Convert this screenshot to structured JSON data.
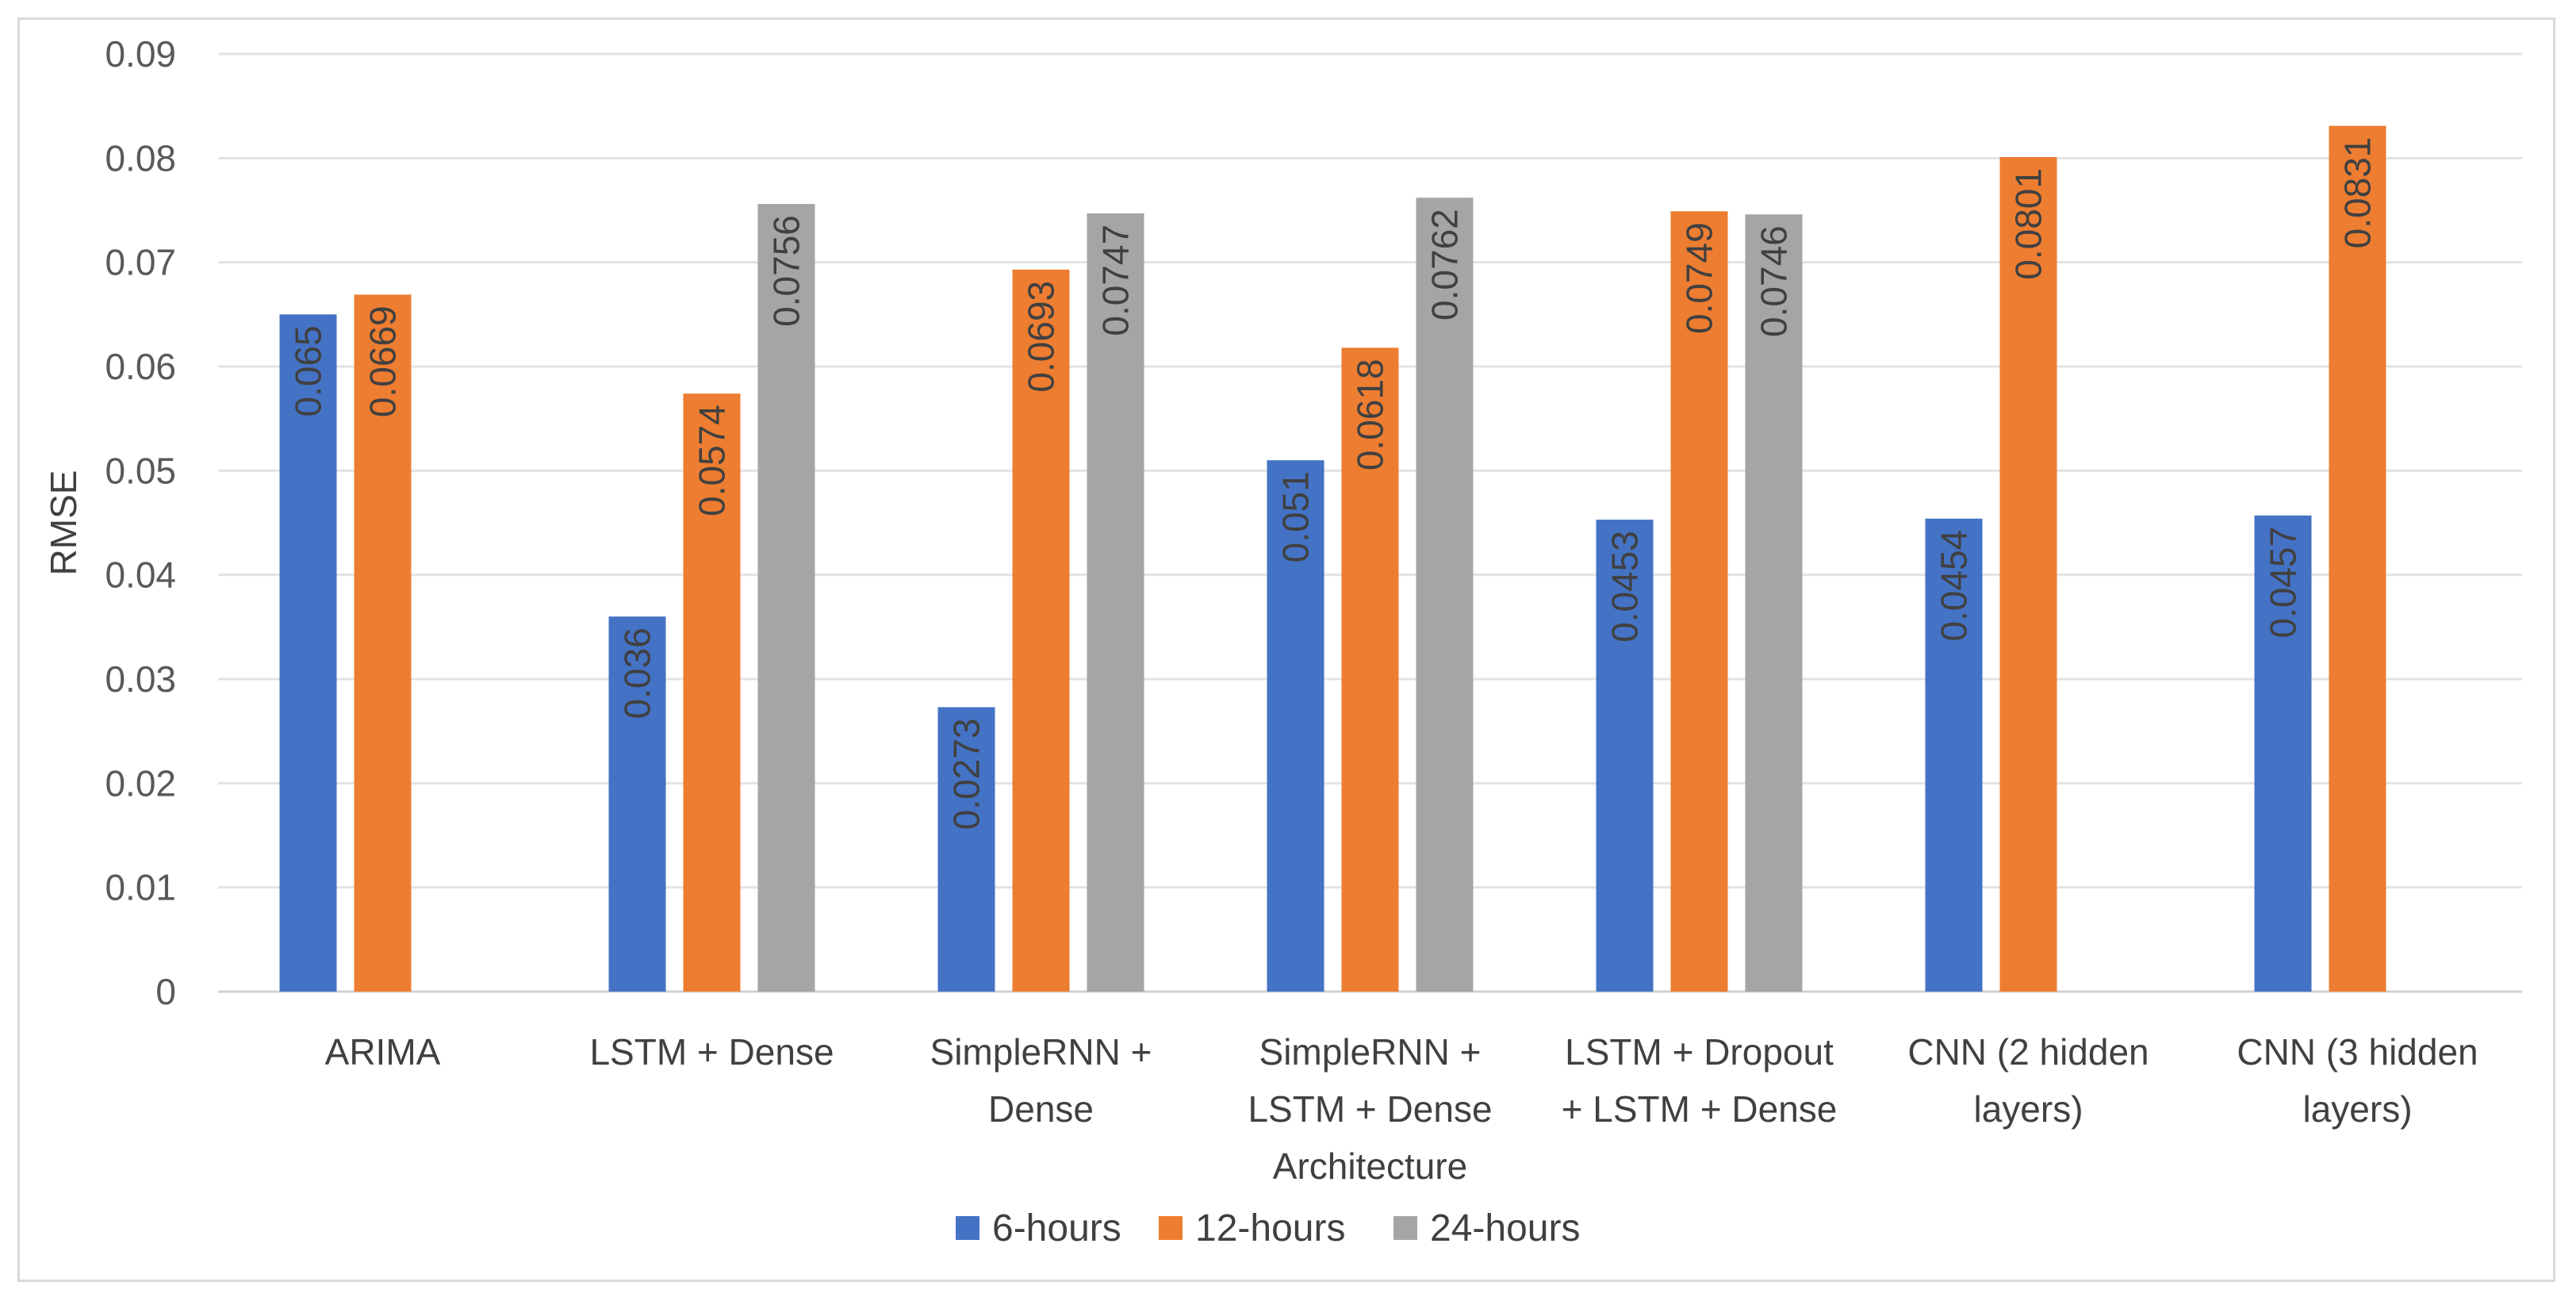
{
  "chart_data": {
    "type": "bar",
    "title": "",
    "xlabel": "",
    "ylabel": "RMSE",
    "ylim": [
      0,
      0.09
    ],
    "yticks": [
      "0",
      "0.01",
      "0.02",
      "0.03",
      "0.04",
      "0.05",
      "0.06",
      "0.07",
      "0.08",
      "0.09"
    ],
    "grid": true,
    "legend_position": "bottom",
    "categories": [
      [
        "ARIMA"
      ],
      [
        "LSTM + Dense"
      ],
      [
        "SimpleRNN +",
        "Dense"
      ],
      [
        "SimpleRNN +",
        "LSTM + Dense",
        "Architecture"
      ],
      [
        "LSTM + Dropout",
        "+ LSTM + Dense"
      ],
      [
        "CNN (2 hidden",
        "layers)"
      ],
      [
        "CNN (3 hidden",
        "layers)"
      ]
    ],
    "series": [
      {
        "name": "6-hours",
        "color": "#4472C4",
        "values": [
          0.065,
          0.036,
          0.0273,
          0.051,
          0.0453,
          0.0454,
          0.0457
        ],
        "labels": [
          "0.065",
          "0.036",
          "0.0273",
          "0.051",
          "0.0453",
          "0.0454",
          "0.0457"
        ]
      },
      {
        "name": "12-hours",
        "color": "#ED7D31",
        "values": [
          0.0669,
          0.0574,
          0.0693,
          0.0618,
          0.0749,
          0.0801,
          0.0831
        ],
        "labels": [
          "0.0669",
          "0.0574",
          "0.0693",
          "0.0618",
          "0.0749",
          "0.0801",
          "0.0831"
        ]
      },
      {
        "name": "24-hours",
        "color": "#A5A5A5",
        "values": [
          null,
          0.0756,
          0.0747,
          0.0762,
          0.0746,
          null,
          null
        ],
        "labels": [
          null,
          "0.0756",
          "0.0747",
          "0.0762",
          "0.0746",
          null,
          null
        ]
      }
    ]
  }
}
